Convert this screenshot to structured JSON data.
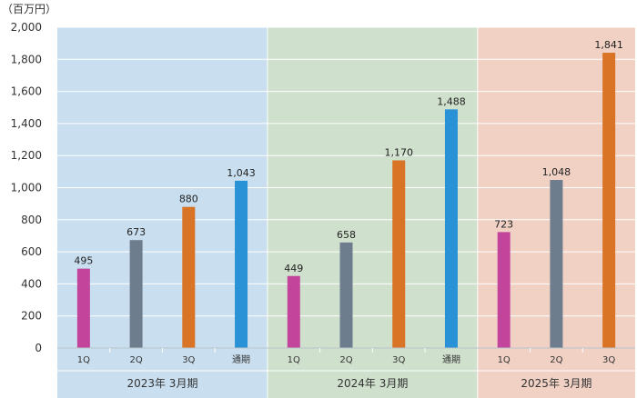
{
  "chart_data": {
    "type": "bar",
    "unit_label": "（百万円）",
    "ylim": [
      0,
      2000
    ],
    "yticks": [
      "0",
      "200",
      "400",
      "600",
      "800",
      "1,000",
      "1,200",
      "1,400",
      "1,600",
      "1,800",
      "2,000"
    ],
    "grid": true,
    "groups": [
      {
        "label": "2023年 3月期",
        "background": "#c9dff0",
        "bars": [
          {
            "category": "1Q",
            "value": 495,
            "label": "495",
            "color": "#c2449b"
          },
          {
            "category": "2Q",
            "value": 673,
            "label": "673",
            "color": "#6e7d8d"
          },
          {
            "category": "3Q",
            "value": 880,
            "label": "880",
            "color": "#d97326"
          },
          {
            "category": "通期",
            "value": 1043,
            "label": "1,043",
            "color": "#2991d6"
          }
        ]
      },
      {
        "label": "2024年 3月期",
        "background": "#cfe0cc",
        "bars": [
          {
            "category": "1Q",
            "value": 449,
            "label": "449",
            "color": "#c2449b"
          },
          {
            "category": "2Q",
            "value": 658,
            "label": "658",
            "color": "#6e7d8d"
          },
          {
            "category": "3Q",
            "value": 1170,
            "label": "1,170",
            "color": "#d97326"
          },
          {
            "category": "通期",
            "value": 1488,
            "label": "1,488",
            "color": "#2991d6"
          }
        ]
      },
      {
        "label": "2025年 3月期",
        "background": "#f0d1c4",
        "bars": [
          {
            "category": "1Q",
            "value": 723,
            "label": "723",
            "color": "#c2449b"
          },
          {
            "category": "2Q",
            "value": 1048,
            "label": "1,048",
            "color": "#6e7d8d"
          },
          {
            "category": "3Q",
            "value": 1841,
            "label": "1,841",
            "color": "#d97326"
          }
        ]
      }
    ]
  }
}
